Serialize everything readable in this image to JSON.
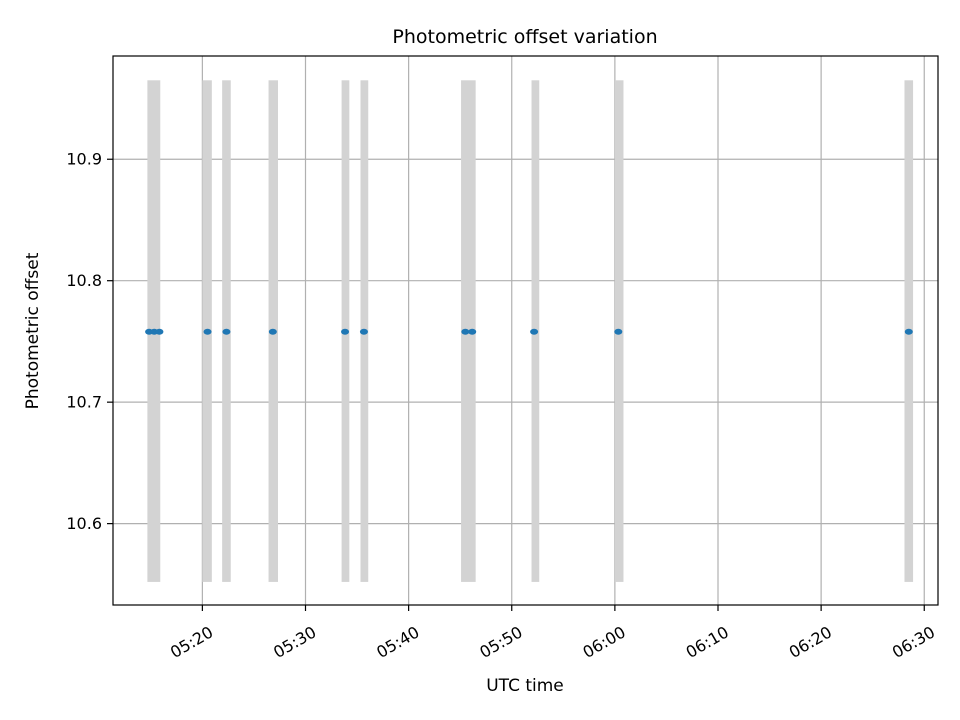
{
  "chart_data": {
    "type": "scatter",
    "title": "Photometric offset variation",
    "xlabel": "UTC time",
    "ylabel": "Photometric offset",
    "x_ticks": [
      "05:20",
      "05:30",
      "05:40",
      "05:50",
      "06:00",
      "06:10",
      "06:20",
      "06:30"
    ],
    "y_ticks": [
      10.6,
      10.7,
      10.8,
      10.9
    ],
    "xlim": [
      "05:11:20",
      "06:31:20"
    ],
    "ylim": [
      10.533,
      10.985
    ],
    "grid": true,
    "point_color": "#1f77b4",
    "band_color": "#d3d3d3",
    "band_ylim": [
      10.552,
      10.965
    ],
    "points": [
      {
        "x": "05:14:50",
        "y": 10.758
      },
      {
        "x": "05:15:20",
        "y": 10.758
      },
      {
        "x": "05:15:50",
        "y": 10.758
      },
      {
        "x": "05:20:30",
        "y": 10.758
      },
      {
        "x": "05:22:20",
        "y": 10.758
      },
      {
        "x": "05:26:50",
        "y": 10.758
      },
      {
        "x": "05:33:50",
        "y": 10.758
      },
      {
        "x": "05:35:40",
        "y": 10.758
      },
      {
        "x": "05:45:30",
        "y": 10.758
      },
      {
        "x": "05:46:10",
        "y": 10.758
      },
      {
        "x": "05:52:10",
        "y": 10.758
      },
      {
        "x": "06:00:20",
        "y": 10.758
      },
      {
        "x": "06:28:30",
        "y": 10.758
      }
    ],
    "bands": [
      {
        "start": "05:14:40",
        "end": "05:15:55"
      },
      {
        "start": "05:20:00",
        "end": "05:20:55"
      },
      {
        "start": "05:21:55",
        "end": "05:22:45"
      },
      {
        "start": "05:26:25",
        "end": "05:27:20"
      },
      {
        "start": "05:33:30",
        "end": "05:34:15"
      },
      {
        "start": "05:35:20",
        "end": "05:36:05"
      },
      {
        "start": "05:45:05",
        "end": "05:46:30"
      },
      {
        "start": "05:51:55",
        "end": "05:52:40"
      },
      {
        "start": "06:00:00",
        "end": "06:00:50"
      },
      {
        "start": "06:28:05",
        "end": "06:28:55"
      }
    ]
  }
}
